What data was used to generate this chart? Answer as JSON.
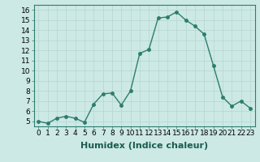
{
  "x": [
    0,
    1,
    2,
    3,
    4,
    5,
    6,
    7,
    8,
    9,
    10,
    11,
    12,
    13,
    14,
    15,
    16,
    17,
    18,
    19,
    20,
    21,
    22,
    23
  ],
  "y": [
    5.0,
    4.8,
    5.3,
    5.5,
    5.3,
    4.9,
    6.7,
    7.7,
    7.8,
    6.6,
    8.0,
    11.7,
    12.1,
    15.2,
    15.3,
    15.8,
    15.0,
    14.4,
    13.6,
    10.5,
    7.4,
    6.5,
    7.0,
    6.3
  ],
  "line_color": "#2e7d6e",
  "marker_color": "#2e7d6e",
  "bg_color": "#cce9e5",
  "grid_color": "#b8d8d4",
  "xlabel": "Humidex (Indice chaleur)",
  "ylim": [
    4.5,
    16.5
  ],
  "xlim": [
    -0.5,
    23.5
  ],
  "yticks": [
    5,
    6,
    7,
    8,
    9,
    10,
    11,
    12,
    13,
    14,
    15,
    16
  ],
  "xticks": [
    0,
    1,
    2,
    3,
    4,
    5,
    6,
    7,
    8,
    9,
    10,
    11,
    12,
    13,
    14,
    15,
    16,
    17,
    18,
    19,
    20,
    21,
    22,
    23
  ],
  "tick_label_fontsize": 6.5,
  "xlabel_fontsize": 8,
  "line_width": 1.0,
  "marker_size": 2.5
}
